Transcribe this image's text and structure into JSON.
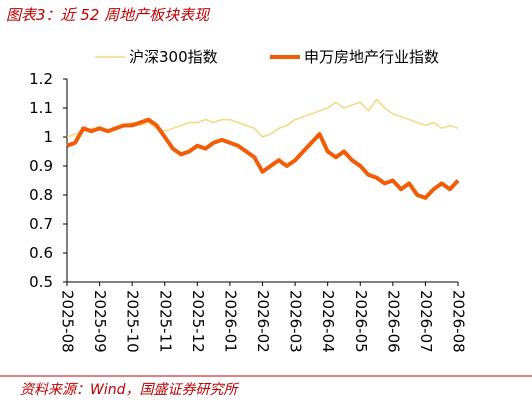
{
  "chart_data": {
    "type": "line",
    "title": "图表3：近 52 周地产板块表现",
    "source": "资料来源：Wind，国盛证券研究所",
    "categories": [
      "2025-08",
      null,
      null,
      null,
      "2025-09",
      null,
      null,
      null,
      "2025-10",
      null,
      null,
      null,
      "2025-11",
      null,
      null,
      null,
      "2025-12",
      null,
      null,
      null,
      "2026-01",
      null,
      null,
      null,
      "2026-02",
      null,
      null,
      null,
      "2026-03",
      null,
      null,
      null,
      "2026-04",
      null,
      null,
      null,
      "2026-05",
      null,
      null,
      null,
      "2026-06",
      null,
      null,
      null,
      "2026-07",
      null,
      null,
      null,
      "2026-08"
    ],
    "series": [
      {
        "name": "沪深300指数",
        "color": "#f5d77e",
        "width": 1.5,
        "values": [
          1.0,
          1.01,
          1.02,
          1.03,
          1.03,
          1.02,
          1.03,
          1.04,
          1.05,
          1.04,
          1.05,
          1.03,
          1.02,
          1.03,
          1.04,
          1.05,
          1.05,
          1.06,
          1.05,
          1.06,
          1.06,
          1.05,
          1.04,
          1.03,
          1.0,
          1.01,
          1.03,
          1.04,
          1.06,
          1.07,
          1.08,
          1.09,
          1.1,
          1.12,
          1.1,
          1.11,
          1.12,
          1.09,
          1.13,
          1.1,
          1.08,
          1.07,
          1.06,
          1.05,
          1.04,
          1.05,
          1.03,
          1.04,
          1.03
        ]
      },
      {
        "name": "申万房地产行业指数",
        "color": "#f25c05",
        "width": 4,
        "values": [
          0.97,
          0.98,
          1.03,
          1.02,
          1.03,
          1.02,
          1.03,
          1.04,
          1.04,
          1.05,
          1.06,
          1.04,
          1.0,
          0.96,
          0.94,
          0.95,
          0.97,
          0.96,
          0.98,
          0.99,
          0.98,
          0.97,
          0.95,
          0.93,
          0.88,
          0.9,
          0.92,
          0.9,
          0.92,
          0.95,
          0.98,
          1.01,
          0.95,
          0.93,
          0.95,
          0.92,
          0.9,
          0.87,
          0.86,
          0.84,
          0.85,
          0.82,
          0.84,
          0.8,
          0.79,
          0.82,
          0.84,
          0.82,
          0.85
        ]
      }
    ],
    "ylim": [
      0.5,
      1.2
    ],
    "yticks": [
      0.5,
      0.6,
      0.7,
      0.8,
      0.9,
      1,
      1.1,
      1.2
    ],
    "grid": false
  }
}
